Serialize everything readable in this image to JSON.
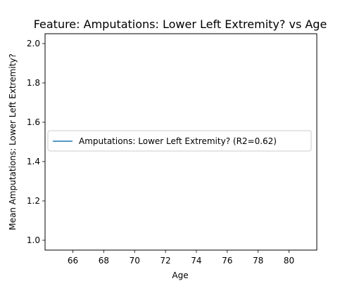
{
  "chart_data": {
    "type": "line",
    "title": "Feature: Amputations: Lower Left Extremity? vs Age",
    "xlabel": "Age",
    "ylabel": "Mean Amputations: Lower Left Extremity?",
    "xlim": [
      64.2,
      81.8
    ],
    "ylim": [
      0.95,
      2.05
    ],
    "x_ticks": [
      66,
      68,
      70,
      72,
      74,
      76,
      78,
      80
    ],
    "y_ticks": [
      1.0,
      1.2,
      1.4,
      1.6,
      1.8,
      2.0
    ],
    "series": [
      {
        "name": "Amputations: Lower Left Extremity? (R2=0.62)",
        "x": [],
        "y": [],
        "color": "#1f77b4"
      }
    ],
    "legend_position": "center-left",
    "grid": false
  }
}
